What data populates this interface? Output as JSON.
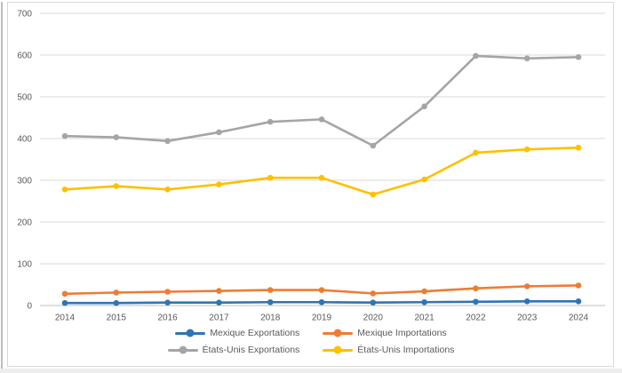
{
  "chart_data": {
    "type": "line",
    "title": "",
    "x": [
      2014,
      2015,
      2016,
      2017,
      2018,
      2019,
      2020,
      2021,
      2022,
      2023,
      2024
    ],
    "series": [
      {
        "name": "Mexique Exportations",
        "color": "#2E75B6",
        "values": [
          6,
          6,
          7,
          7,
          8,
          8,
          7,
          8,
          9,
          10,
          10
        ]
      },
      {
        "name": "Mexique Importations",
        "color": "#ED7D31",
        "values": [
          28,
          31,
          33,
          35,
          37,
          37,
          29,
          34,
          41,
          46,
          48
        ]
      },
      {
        "name": "États-Unis Exportations",
        "color": "#A5A5A5",
        "values": [
          406,
          403,
          394,
          415,
          440,
          446,
          383,
          477,
          598,
          592,
          595
        ]
      },
      {
        "name": "États-Unis Importations",
        "color": "#FFC000",
        "values": [
          278,
          286,
          278,
          290,
          306,
          306,
          266,
          302,
          366,
          374,
          378
        ]
      }
    ],
    "ylim": [
      0,
      700
    ],
    "yticks": [
      0,
      100,
      200,
      300,
      400,
      500,
      600,
      700
    ],
    "grid": true,
    "legend_position": "bottom",
    "legend_rows": [
      [
        0,
        1
      ],
      [
        2,
        3
      ]
    ]
  },
  "colors": {
    "gridline": "#d9d9d9",
    "axis_line": "#bfbfbf",
    "axis_text": "#595959",
    "chart_border": "#d9d9d9"
  }
}
